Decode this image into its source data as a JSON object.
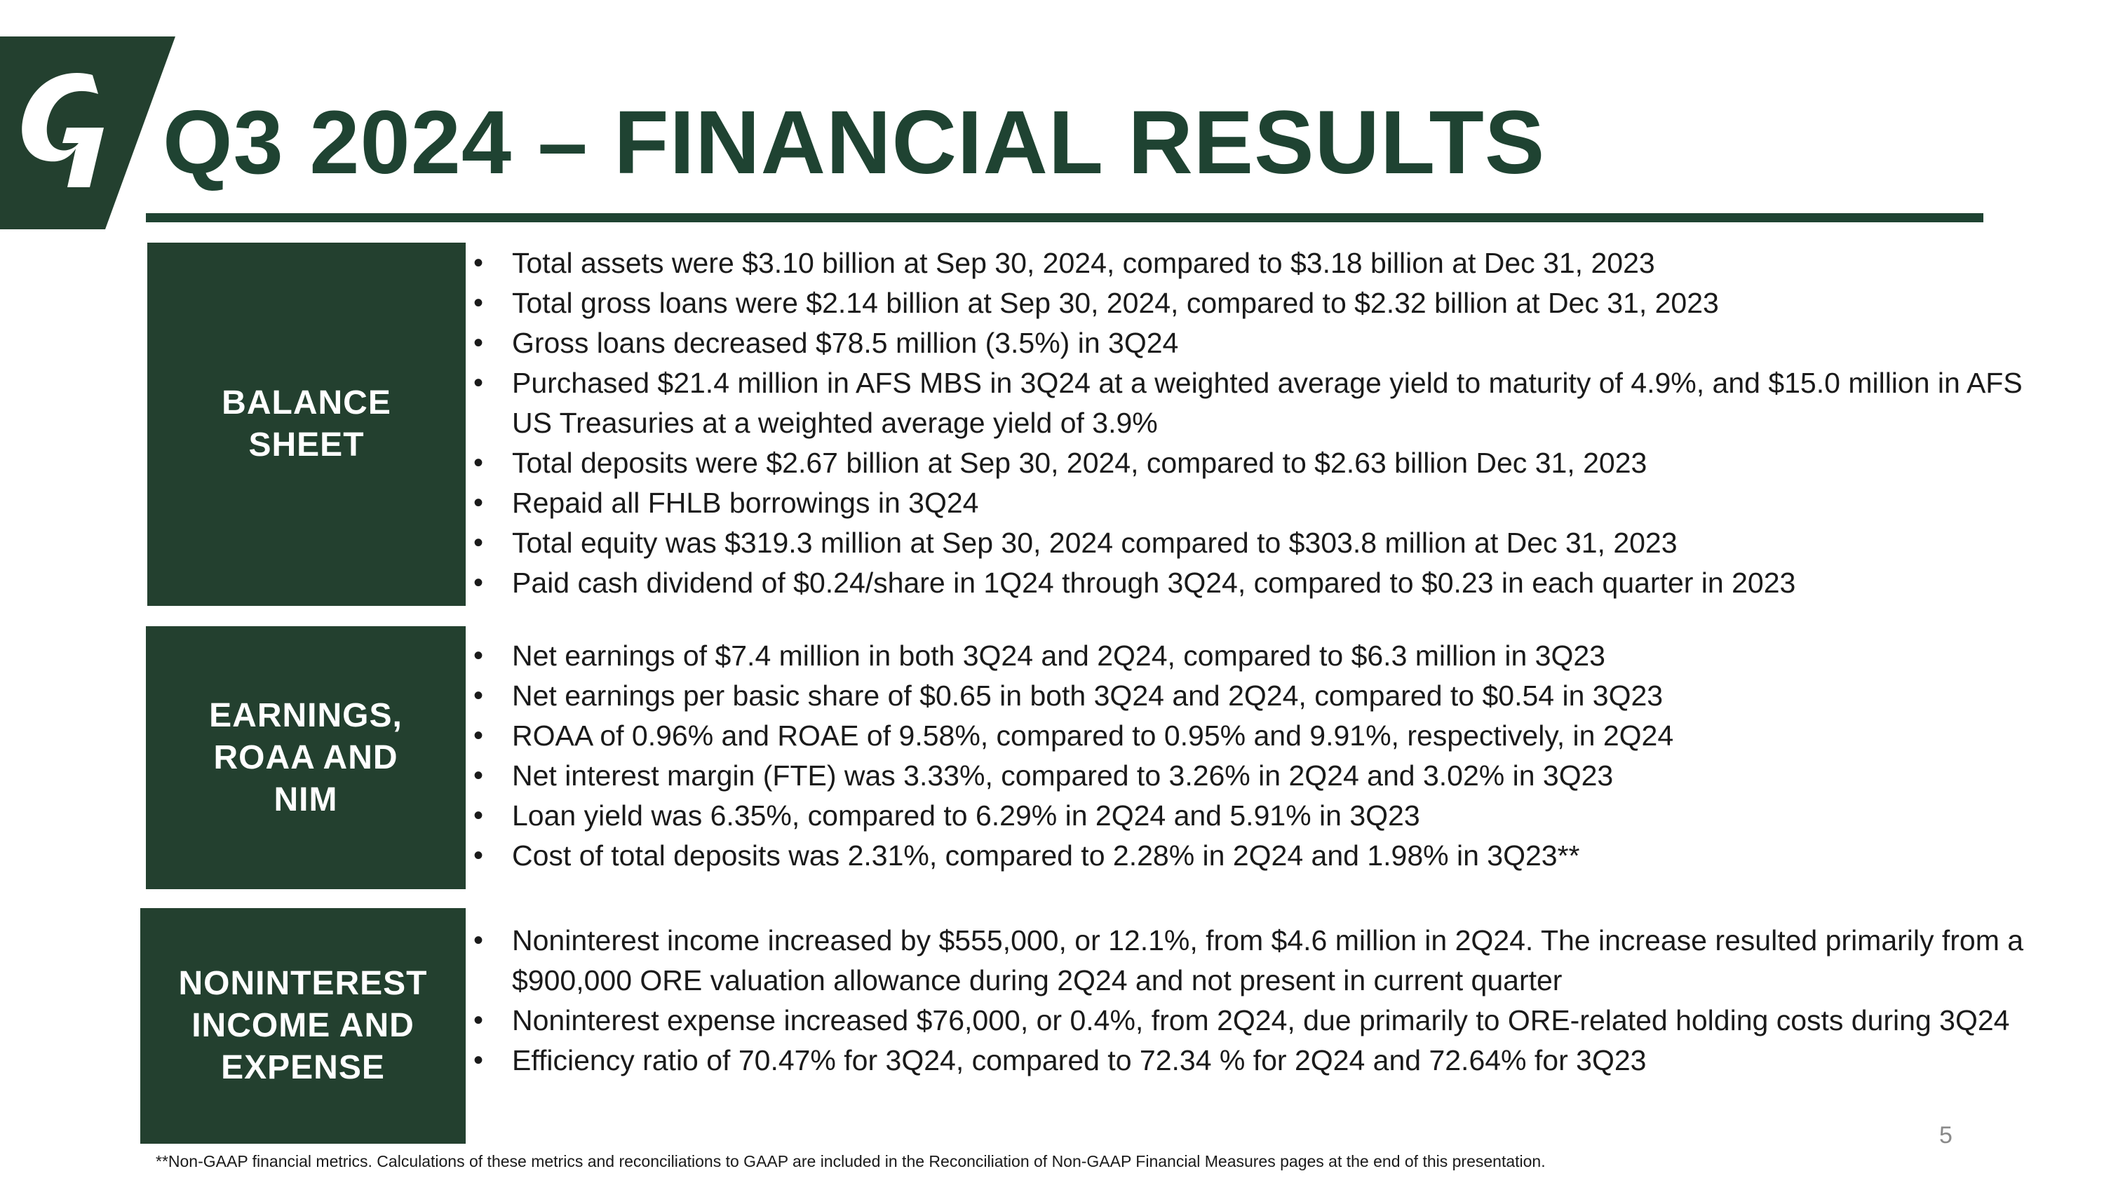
{
  "slide": {
    "title": "Q3 2024 – FINANCIAL RESULTS",
    "page_number": "5",
    "footnote": "**Non-GAAP financial metrics. Calculations of these metrics and reconciliations to GAAP are included in the Reconciliation of Non-GAAP Financial Measures pages at the end of this presentation.",
    "logo_icon": "company-g-logo",
    "colors": {
      "brand_green": "#1f4332",
      "box_green": "#23402f",
      "text": "#1a1a1a"
    }
  },
  "sections": {
    "balance_sheet": {
      "label": "BALANCE\nSHEET",
      "bullets": [
        "Total assets were $3.10 billion at Sep 30, 2024, compared to $3.18 billion at Dec 31, 2023",
        "Total gross loans were $2.14 billion at Sep 30, 2024, compared to $2.32 billion at Dec 31, 2023",
        "Gross loans decreased $78.5 million (3.5%) in 3Q24",
        "Purchased $21.4 million in AFS MBS in 3Q24 at a weighted average yield to maturity of 4.9%, and $15.0 million in AFS US Treasuries at a weighted average yield of 3.9%",
        "Total deposits were $2.67 billion at Sep 30, 2024, compared to $2.63 billion Dec 31, 2023",
        "Repaid all FHLB borrowings in 3Q24",
        "Total equity was $319.3 million at Sep 30, 2024 compared to $303.8 million at Dec 31, 2023",
        "Paid cash dividend of $0.24/share in 1Q24 through 3Q24, compared to $0.23 in each quarter in 2023"
      ]
    },
    "earnings": {
      "label": "EARNINGS,\nROAA AND\nNIM",
      "bullets": [
        "Net earnings of $7.4 million in both 3Q24 and 2Q24, compared to $6.3 million in 3Q23",
        "Net earnings per basic share of $0.65 in both 3Q24 and 2Q24, compared to $0.54 in 3Q23",
        "ROAA of 0.96% and ROAE of 9.58%, compared to 0.95% and 9.91%, respectively, in 2Q24",
        "Net interest margin (FTE) was 3.33%, compared to 3.26% in 2Q24 and 3.02% in 3Q23",
        "Loan yield was 6.35%, compared to 6.29% in 2Q24 and 5.91% in 3Q23",
        "Cost of total deposits was 2.31%, compared to 2.28% in 2Q24 and 1.98% in 3Q23**"
      ]
    },
    "noninterest": {
      "label": "NONINTEREST\nINCOME AND\nEXPENSE",
      "bullets": [
        "Noninterest income increased by $555,000, or 12.1%, from $4.6 million in 2Q24. The increase resulted primarily from a $900,000 ORE valuation allowance during 2Q24 and not present in current quarter",
        "Noninterest expense increased $76,000, or 0.4%, from 2Q24, due primarily to ORE-related holding costs during 3Q24",
        "Efficiency ratio of 70.47% for 3Q24, compared to 72.34 % for 2Q24 and 72.64% for 3Q23"
      ]
    }
  }
}
